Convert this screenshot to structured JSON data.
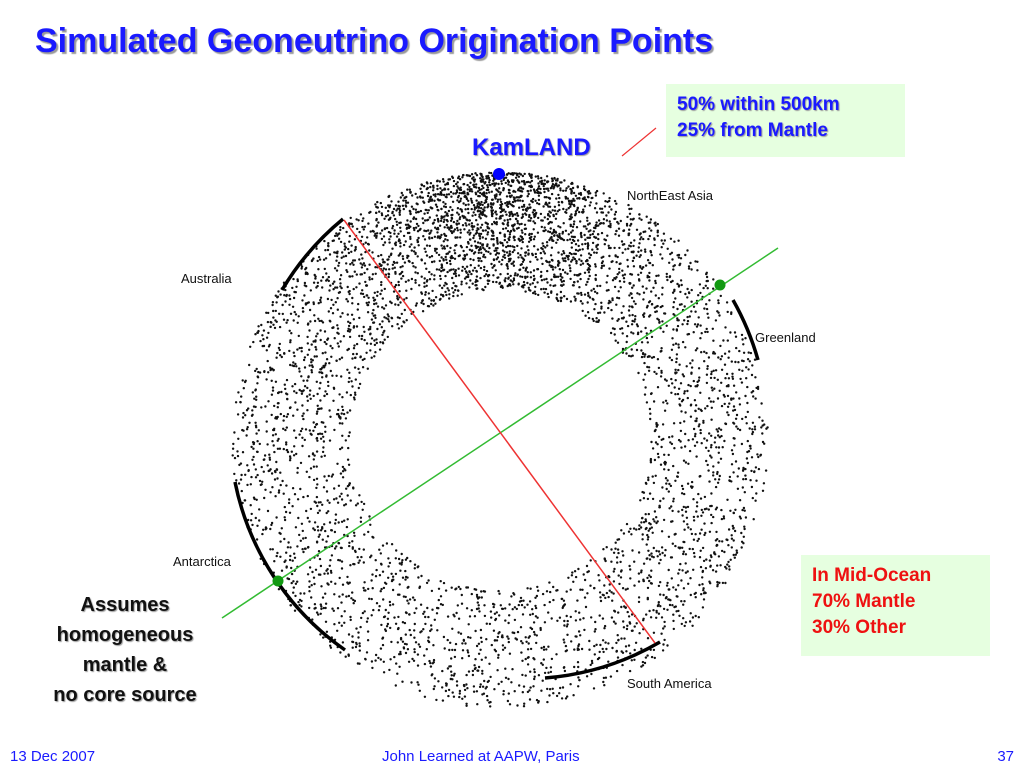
{
  "slide": {
    "title": "Simulated Geoneutrino Origination Points",
    "detector_label": "KamLAND",
    "top_box": {
      "line1": "50% within 500km",
      "line2": "25% from Mantle"
    },
    "bottom_box": {
      "line1": "In Mid-Ocean",
      "line2": "70% Mantle",
      "line3": "30% Other"
    },
    "regions": {
      "northeast_asia": "NorthEast Asia",
      "australia": "Australia",
      "greenland": "Greenland",
      "antarctica": "Antarctica",
      "south_america": "South America"
    },
    "assumptions": {
      "line1": "Assumes",
      "line2": "homogeneous",
      "line3": "mantle &",
      "line4": "no core source"
    },
    "footer": {
      "date": "13 Dec 2007",
      "author": "John Learned at AAPW, Paris",
      "page": "37"
    }
  },
  "colors": {
    "title": "#1a1aff",
    "detector_marker": "#0000ff",
    "green_line": "#33bb33",
    "red_line": "#ee3333",
    "box_fill": "#e6ffe0",
    "bottom_box_text": "#ee1111"
  }
}
